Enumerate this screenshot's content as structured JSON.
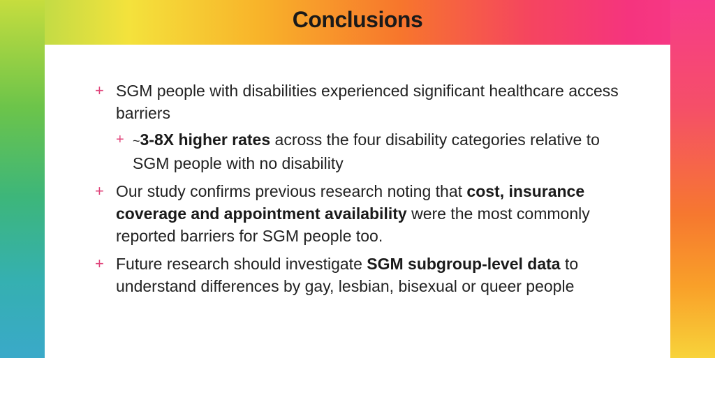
{
  "slide": {
    "title": "Conclusions",
    "bullets": [
      {
        "text": "SGM people with disabilities experienced significant healthcare access barriers",
        "sub": {
          "tilde": "~",
          "bold": "3-8X higher rates",
          "rest": " across the four disability categories relative to SGM people with no disability"
        }
      },
      {
        "pre": "Our study confirms previous research noting that ",
        "bold": "cost, insurance coverage and appointment availability",
        "post": " were the most commonly reported barriers for SGM people too."
      },
      {
        "pre": "Future research should investigate ",
        "bold": "SGM subgroup-level data",
        "post": " to understand differences by gay, lesbian, bisexual or queer people"
      }
    ],
    "bullet_symbol": "+"
  },
  "colors": {
    "bullet": "#e0457b",
    "text": "#222222"
  }
}
